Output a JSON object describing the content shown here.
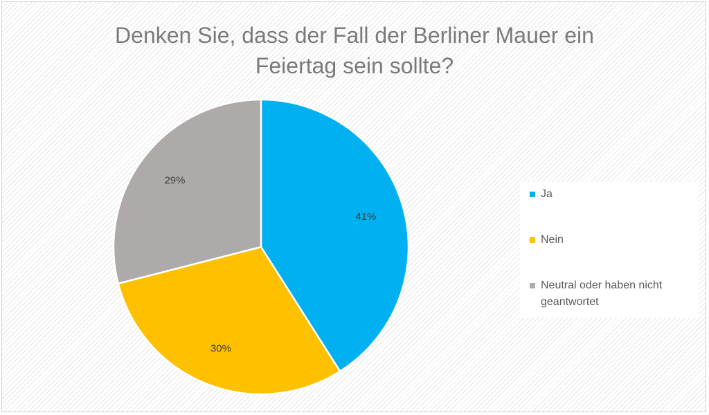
{
  "chart_data": {
    "type": "pie",
    "title_lines": [
      "Denken Sie, dass der Fall der Berliner Mauer ein",
      "Feiertag sein sollte?"
    ],
    "slices": [
      {
        "name": "Ja",
        "value": 41,
        "label": "41%",
        "color": "#00b0f0"
      },
      {
        "name": "Nein",
        "value": 30,
        "label": "30%",
        "color": "#ffc000"
      },
      {
        "name": "Neutral oder haben nicht geantwortet",
        "value": 29,
        "label": "29%",
        "color": "#aeaaaa"
      }
    ],
    "legend_position": "right"
  }
}
